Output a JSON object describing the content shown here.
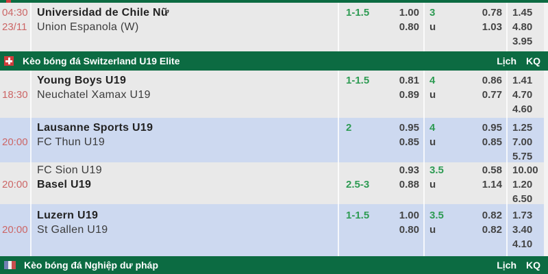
{
  "colors": {
    "header_green": "#0c6b42",
    "row_gray": "#e9e9e9",
    "row_blue": "#cdd9f0",
    "time_red": "#cc6666",
    "line_green": "#2e9b53",
    "odds_dark": "#444444"
  },
  "league_headers": [
    {
      "flag": "switzerland-flag",
      "title": "Kèo bóng đá Switzerland U19 Elite",
      "schedule_label": "Lịch",
      "results_label": "KQ"
    },
    {
      "flag": "france-flag",
      "title": "Kèo bóng đá Nghiệp dư pháp",
      "schedule_label": "Lịch",
      "results_label": "KQ"
    }
  ],
  "rows": [
    {
      "time": [
        "04:30",
        "23/11"
      ],
      "teams": [
        "Universidad de Chile Nữ",
        "Union Espanola (W)"
      ],
      "handicap": [
        "1-1.5",
        ""
      ],
      "handicap_odds": [
        "1.00",
        "0.80"
      ],
      "over_under": [
        "3",
        "u"
      ],
      "over_under_odds": [
        "0.78",
        "1.03"
      ],
      "odds_1x2": [
        "1.45",
        "4.80",
        "3.95"
      ]
    },
    {
      "time": [
        "",
        "18:30"
      ],
      "teams": [
        "Young Boys U19",
        "Neuchatel Xamax U19"
      ],
      "handicap": [
        "1-1.5",
        ""
      ],
      "handicap_odds": [
        "0.81",
        "0.89"
      ],
      "over_under": [
        "4",
        "u"
      ],
      "over_under_odds": [
        "0.86",
        "0.77"
      ],
      "odds_1x2": [
        "1.41",
        "4.70",
        "4.60"
      ]
    },
    {
      "time": [
        "",
        "20:00"
      ],
      "teams": [
        "Lausanne Sports U19",
        "FC Thun U19"
      ],
      "handicap": [
        "2",
        ""
      ],
      "handicap_odds": [
        "0.95",
        "0.85"
      ],
      "over_under": [
        "4",
        "u"
      ],
      "over_under_odds": [
        "0.95",
        "0.85"
      ],
      "odds_1x2": [
        "1.25",
        "7.00",
        "5.75"
      ]
    },
    {
      "time": [
        "",
        "20:00"
      ],
      "teams": [
        "FC Sion U19",
        "Basel U19"
      ],
      "handicap": [
        "",
        "2.5-3"
      ],
      "handicap_odds": [
        "0.93",
        "0.88"
      ],
      "over_under": [
        "3.5",
        "u"
      ],
      "over_under_odds": [
        "0.58",
        "1.14"
      ],
      "odds_1x2": [
        "10.00",
        "1.20",
        "6.50"
      ]
    },
    {
      "time": [
        "",
        "20:00"
      ],
      "teams": [
        "Luzern U19",
        "St Gallen U19"
      ],
      "handicap": [
        "1-1.5",
        ""
      ],
      "handicap_odds": [
        "1.00",
        "0.80"
      ],
      "over_under": [
        "3.5",
        "u"
      ],
      "over_under_odds": [
        "0.82",
        "0.82"
      ],
      "odds_1x2": [
        "1.73",
        "3.40",
        "4.10"
      ]
    }
  ]
}
